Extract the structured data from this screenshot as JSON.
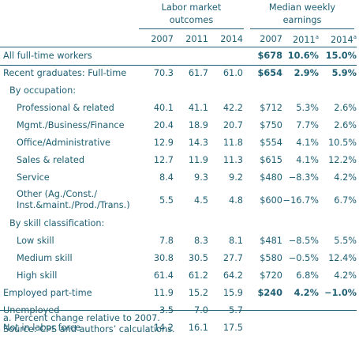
{
  "headers": {
    "labor_group": "Labor market outcomes",
    "earnings_group": "Median weekly earnings",
    "years": [
      "2007",
      "2011",
      "2014",
      "2007",
      "2011",
      "2014"
    ],
    "superscript": "a"
  },
  "rows": [
    {
      "label": "All full-time workers",
      "c": [
        "",
        "",
        "",
        "$678",
        "10.6%",
        "15.0%"
      ]
    },
    {
      "label": "Recent graduates: Full-time",
      "c": [
        "70.3",
        "61.7",
        "61.0",
        "$654",
        "2.9%",
        "5.9%"
      ]
    },
    {
      "label": "By occupation:",
      "c": [
        "",
        "",
        "",
        "",
        "",
        ""
      ]
    },
    {
      "label": "Professional & related",
      "c": [
        "40.1",
        "41.1",
        "42.2",
        "$712",
        "5.3%",
        "2.6%"
      ]
    },
    {
      "label": "Mgmt./Business/Finance",
      "c": [
        "20.4",
        "18.9",
        "20.7",
        "$750",
        "7.7%",
        "2.6%"
      ]
    },
    {
      "label": "Office/Administrative",
      "c": [
        "12.9",
        "14.3",
        "11.8",
        "$554",
        "4.1%",
        "10.5%"
      ]
    },
    {
      "label": "Sales & related",
      "c": [
        "12.7",
        "11.9",
        "11.3",
        "$615",
        "4.1%",
        "12.2%"
      ]
    },
    {
      "label": "Service",
      "c": [
        "8.4",
        "9.3",
        "9.2",
        "$480",
        "−8.3%",
        "4.2%"
      ]
    },
    {
      "label": "Other (Ag./Const./ Inst.&maint./Prod./Trans.)",
      "c": [
        "5.5",
        "4.5",
        "4.8",
        "$600",
        "−16.7%",
        "6.7%"
      ]
    },
    {
      "label": "By skill classification:",
      "c": [
        "",
        "",
        "",
        "",
        "",
        ""
      ]
    },
    {
      "label": "Low skill",
      "c": [
        "7.8",
        "8.3",
        "8.1",
        "$481",
        "−8.5%",
        "5.5%"
      ]
    },
    {
      "label": "Medium skill",
      "c": [
        "30.8",
        "30.5",
        "27.7",
        "$580",
        "−0.5%",
        "12.4%"
      ]
    },
    {
      "label": "High skill",
      "c": [
        "61.4",
        "61.2",
        "64.2",
        "$720",
        "6.8%",
        "4.2%"
      ]
    },
    {
      "label": "Employed part-time",
      "c": [
        "11.9",
        "15.2",
        "15.9",
        "$240",
        "4.2%",
        "−1.0%"
      ]
    },
    {
      "label": "Unemployed",
      "c": [
        "3.5",
        "7.0",
        "5.7",
        "",
        "",
        ""
      ]
    },
    {
      "label": "Not in labor force",
      "c": [
        "14.2",
        "16.1",
        "17.5",
        "",
        "",
        ""
      ]
    }
  ],
  "notes": {
    "a": "a. Percent change relative to 2007.",
    "source": "Source: CPS and authors’ calculations."
  }
}
